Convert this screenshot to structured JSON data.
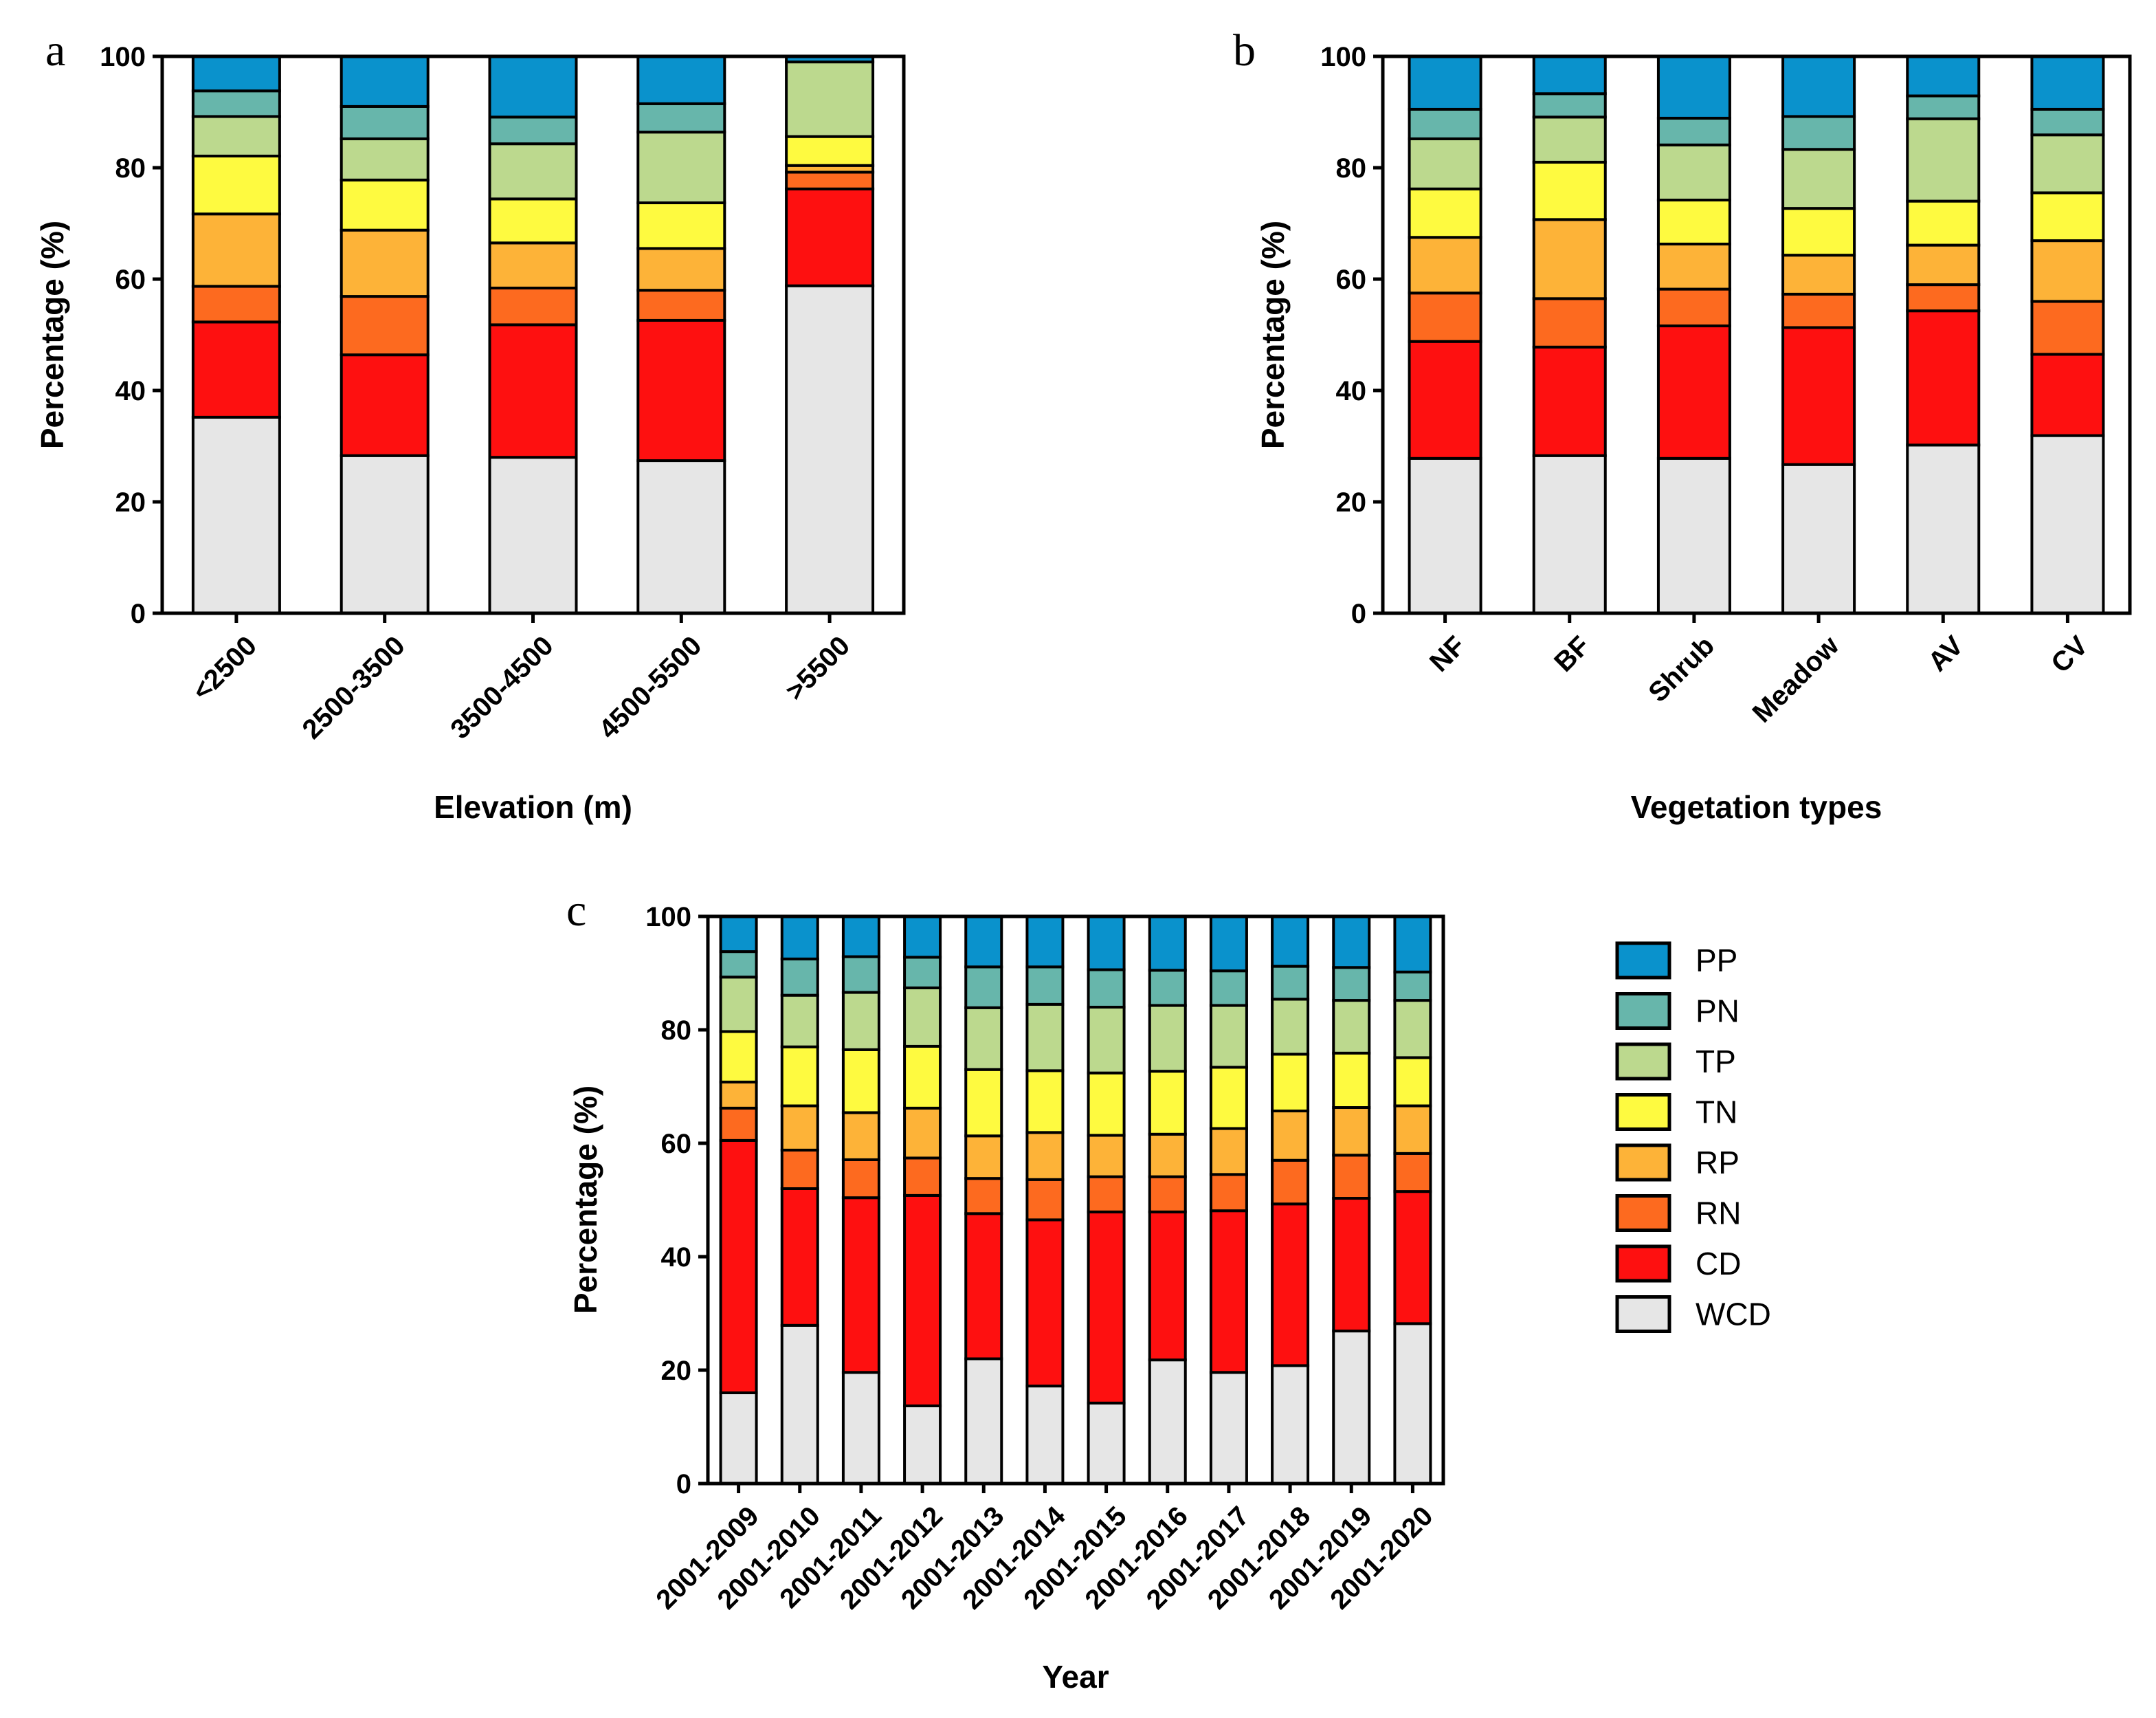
{
  "colors": {
    "WCD": "#e6e6e6",
    "CD": "#fe1010",
    "RN": "#fd6a1f",
    "RP": "#fdb338",
    "TN": "#fefa40",
    "TP": "#bcd98e",
    "PN": "#67b6ab",
    "PP": "#0a92cc"
  },
  "legend": [
    "PP",
    "PN",
    "TP",
    "TN",
    "RP",
    "RN",
    "CD",
    "WCD"
  ],
  "chart_data": [
    {
      "panel": "a",
      "type": "bar",
      "stacked": true,
      "ylabel": "Percentage (%)",
      "xlabel": "Elevation (m)",
      "ylim": [
        0,
        100
      ],
      "yticks": [
        "0",
        "20",
        "40",
        "60",
        "80",
        "100"
      ],
      "categories": [
        "<2500",
        "2500-3500",
        "3500-4500",
        "4500-5500",
        ">5500"
      ],
      "series": [
        {
          "name": "WCD",
          "values": [
            35.2,
            28.3,
            28.0,
            27.4,
            58.8
          ]
        },
        {
          "name": "CD",
          "values": [
            17.1,
            18.1,
            23.8,
            25.2,
            17.4
          ]
        },
        {
          "name": "RN",
          "values": [
            6.4,
            10.5,
            6.6,
            5.4,
            3.0
          ]
        },
        {
          "name": "RP",
          "values": [
            13.0,
            11.9,
            8.1,
            7.5,
            1.2
          ]
        },
        {
          "name": "TN",
          "values": [
            10.4,
            9.0,
            7.9,
            8.2,
            5.2
          ]
        },
        {
          "name": "TP",
          "values": [
            7.1,
            7.4,
            9.9,
            12.7,
            13.4
          ]
        },
        {
          "name": "PN",
          "values": [
            4.6,
            5.8,
            4.8,
            5.1,
            0.0
          ]
        },
        {
          "name": "PP",
          "values": [
            6.2,
            9.0,
            10.9,
            8.5,
            1.0
          ]
        }
      ]
    },
    {
      "panel": "b",
      "type": "bar",
      "stacked": true,
      "ylabel": "Percentage (%)",
      "xlabel": "Vegetation types",
      "ylim": [
        0,
        100
      ],
      "yticks": [
        "0",
        "20",
        "40",
        "60",
        "80",
        "100"
      ],
      "categories": [
        "NF",
        "BF",
        "Shrub",
        "Meadow",
        "AV",
        "CV"
      ],
      "series": [
        {
          "name": "WCD",
          "values": [
            27.8,
            28.3,
            27.8,
            26.7,
            30.2,
            31.9
          ]
        },
        {
          "name": "CD",
          "values": [
            21.0,
            19.5,
            23.8,
            24.6,
            24.1,
            14.6
          ]
        },
        {
          "name": "RN",
          "values": [
            8.7,
            8.7,
            6.6,
            6.0,
            4.7,
            9.5
          ]
        },
        {
          "name": "RP",
          "values": [
            10.0,
            14.2,
            8.1,
            7.0,
            7.1,
            10.9
          ]
        },
        {
          "name": "TN",
          "values": [
            8.7,
            10.3,
            7.9,
            8.4,
            7.9,
            8.6
          ]
        },
        {
          "name": "TP",
          "values": [
            9.0,
            8.1,
            9.9,
            10.6,
            14.8,
            10.4
          ]
        },
        {
          "name": "PN",
          "values": [
            5.3,
            4.2,
            4.8,
            5.9,
            4.1,
            4.6
          ]
        },
        {
          "name": "PP",
          "values": [
            9.5,
            6.7,
            11.1,
            10.8,
            7.1,
            9.5
          ]
        }
      ]
    },
    {
      "panel": "c",
      "type": "bar",
      "stacked": true,
      "ylabel": "Percentage (%)",
      "xlabel": "Year",
      "ylim": [
        0,
        100
      ],
      "yticks": [
        "0",
        "20",
        "40",
        "60",
        "80",
        "100"
      ],
      "categories": [
        "2001-2009",
        "2001-2010",
        "2001-2011",
        "2001-2012",
        "2001-2013",
        "2001-2014",
        "2001-2015",
        "2001-2016",
        "2001-2017",
        "2001-2018",
        "2001-2019",
        "2001-2020"
      ],
      "series": [
        {
          "name": "WCD",
          "values": [
            16.0,
            27.9,
            19.6,
            13.7,
            22.0,
            17.2,
            14.2,
            21.8,
            19.6,
            20.8,
            26.9,
            28.2
          ]
        },
        {
          "name": "CD",
          "values": [
            44.5,
            24.1,
            30.8,
            37.1,
            25.6,
            29.3,
            33.7,
            26.1,
            28.5,
            28.5,
            23.4,
            23.3
          ]
        },
        {
          "name": "RN",
          "values": [
            5.7,
            6.8,
            6.7,
            6.6,
            6.2,
            7.1,
            6.2,
            6.2,
            6.4,
            7.7,
            7.6,
            6.7
          ]
        },
        {
          "name": "RP",
          "values": [
            4.6,
            7.8,
            8.3,
            8.8,
            7.5,
            8.3,
            7.3,
            7.5,
            8.1,
            8.7,
            8.4,
            8.4
          ]
        },
        {
          "name": "TN",
          "values": [
            8.9,
            10.4,
            11.1,
            10.9,
            11.7,
            10.9,
            11.0,
            11.1,
            10.8,
            10.0,
            9.6,
            8.5
          ]
        },
        {
          "name": "TP",
          "values": [
            9.6,
            9.1,
            10.1,
            10.3,
            10.9,
            11.7,
            11.6,
            11.6,
            10.9,
            9.7,
            9.3,
            10.1
          ]
        },
        {
          "name": "PN",
          "values": [
            4.5,
            6.4,
            6.3,
            5.4,
            7.2,
            6.6,
            6.6,
            6.2,
            6.1,
            5.8,
            5.8,
            5.0
          ]
        },
        {
          "name": "PP",
          "values": [
            6.2,
            7.5,
            7.1,
            7.2,
            8.9,
            8.9,
            9.4,
            9.5,
            9.6,
            8.8,
            9.0,
            9.8
          ]
        }
      ]
    }
  ],
  "panel_labels": [
    "a",
    "b",
    "c"
  ]
}
